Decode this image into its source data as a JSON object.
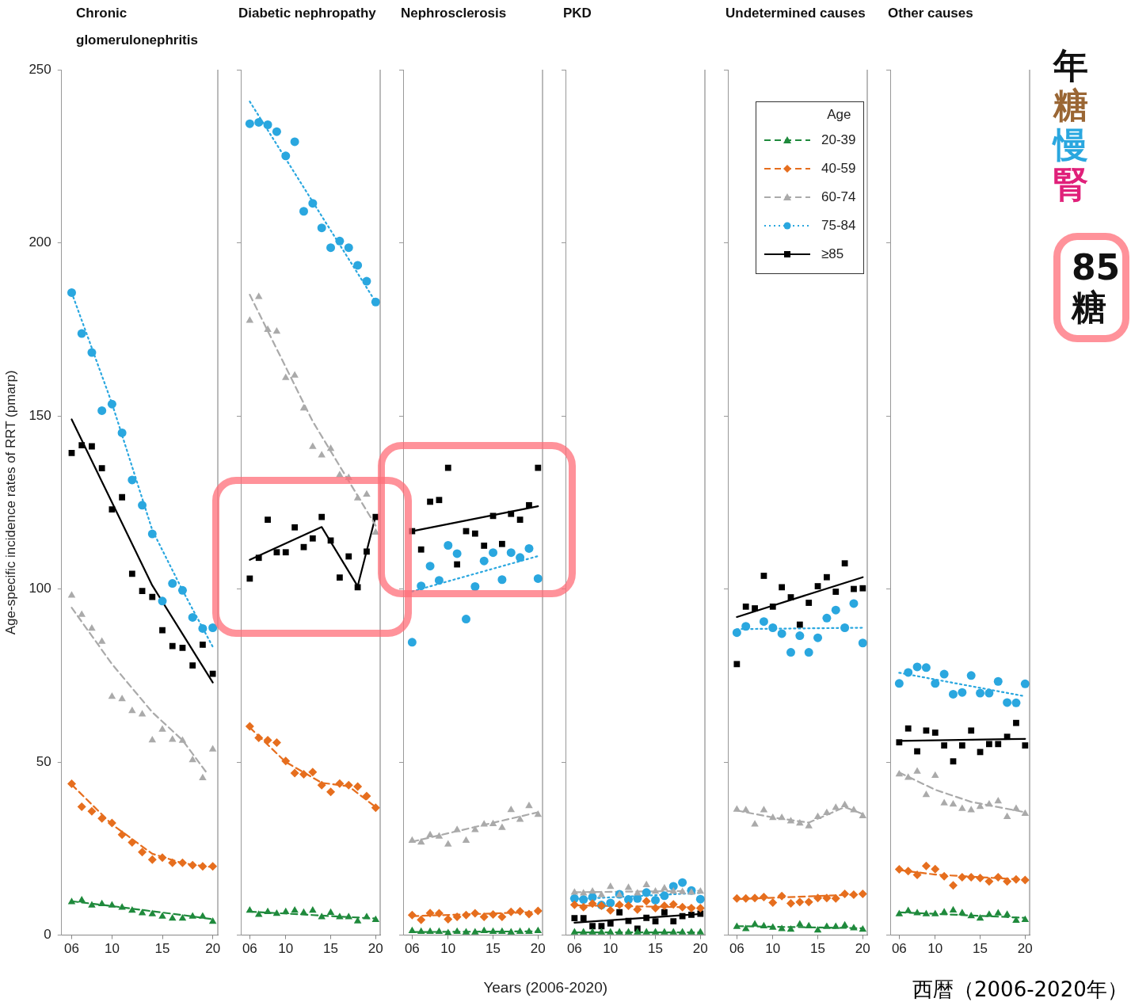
{
  "chart_data": [
    {
      "type": "scatter",
      "title": "Chronic glomerulonephritis",
      "ylabel": "Age-specific incidence rates of RRT (pmarp)",
      "x": [
        2006,
        2007,
        2008,
        2009,
        2010,
        2011,
        2012,
        2013,
        2014,
        2015,
        2016,
        2017,
        2018,
        2019,
        2020
      ],
      "xlim": [
        2005,
        2020.5
      ],
      "xticks": [
        {
          "value": 2006,
          "label": "06"
        },
        {
          "value": 2010,
          "label": "10"
        },
        {
          "value": 2015,
          "label": "15"
        },
        {
          "value": 2020,
          "label": "20"
        }
      ],
      "ylim": [
        0,
        250
      ],
      "yticks": [
        0,
        50,
        100,
        150,
        200,
        250
      ],
      "grid": false,
      "series": [
        {
          "type": "scatter",
          "color": "#1f8a3c",
          "marker": "triangle",
          "values": [
            9.6,
            10.1,
            8.6,
            9.0,
            8.6,
            8.0,
            7.1,
            6.4,
            6.1,
            5.4,
            4.8,
            4.8,
            5.4,
            5.4,
            3.9
          ]
        },
        {
          "type": "scatter",
          "color": "#e66e1e",
          "marker": "diamond",
          "values": [
            43.7,
            37.1,
            35.8,
            33.7,
            32.4,
            29.0,
            26.8,
            24.0,
            21.8,
            22.4,
            20.9,
            20.9,
            20.2,
            19.9,
            19.9
          ]
        },
        {
          "type": "scatter",
          "color": "#aaaaaa",
          "marker": "triangle",
          "values": [
            98.1,
            92.6,
            88.6,
            84.8,
            68.9,
            68.2,
            64.8,
            63.8,
            56.3,
            59.4,
            56.5,
            56.2,
            50.6,
            45.4,
            53.7
          ]
        },
        {
          "type": "scatter",
          "color": "#2aa7df",
          "marker": "circle",
          "values": [
            185.6,
            173.8,
            168.3,
            151.5,
            153.4,
            145.1,
            131.5,
            124.2,
            115.9,
            96.5,
            101.6,
            99.6,
            91.8,
            88.6,
            88.8
          ]
        },
        {
          "type": "scatter",
          "color": "#000000",
          "marker": "square",
          "values": [
            139.3,
            141.5,
            141.2,
            134.9,
            123.0,
            126.5,
            104.4,
            99.4,
            97.7,
            88.1,
            83.5,
            83.0,
            77.9,
            83.9,
            75.5
          ]
        },
        {
          "type": "line",
          "color": "#1f8a3c",
          "line_style": "dashed",
          "marker": "none",
          "x": [
            2006,
            2010,
            2014,
            2017,
            2020
          ],
          "values": [
            9.8,
            8.4,
            6.9,
            5.8,
            4.6
          ]
        },
        {
          "type": "line",
          "color": "#e66e1e",
          "line_style": "dashed",
          "marker": "none",
          "x": [
            2006,
            2010,
            2014,
            2017,
            2020
          ],
          "values": [
            43.5,
            32,
            23.5,
            20.8,
            19.6
          ]
        },
        {
          "type": "line",
          "color": "#aaaaaa",
          "line_style": "dashed",
          "marker": "none",
          "x": [
            2006,
            2010,
            2014,
            2017,
            2019.5
          ],
          "values": [
            94.6,
            78.3,
            64.4,
            56.3,
            46.5
          ]
        },
        {
          "type": "line",
          "color": "#2aa7df",
          "line_style": "dotted",
          "marker": "none",
          "x": [
            2006,
            2010,
            2014,
            2017,
            2020
          ],
          "values": [
            185.6,
            153.6,
            117,
            99.6,
            83.3
          ]
        },
        {
          "type": "line",
          "color": "#000000",
          "line_style": "solid",
          "marker": "none",
          "x": [
            2006,
            2010,
            2014,
            2017,
            2020
          ],
          "values": [
            149,
            125,
            101,
            87,
            73
          ]
        }
      ]
    },
    {
      "type": "scatter",
      "title": "Diabetic nephropathy",
      "x": [
        2006,
        2007,
        2008,
        2009,
        2010,
        2011,
        2012,
        2013,
        2014,
        2015,
        2016,
        2017,
        2018,
        2019,
        2020
      ],
      "xlim": [
        2005,
        2020.5
      ],
      "xticks": [
        {
          "value": 2006,
          "label": "06"
        },
        {
          "value": 2010,
          "label": "10"
        },
        {
          "value": 2015,
          "label": "15"
        },
        {
          "value": 2020,
          "label": "20"
        }
      ],
      "ylim": [
        0,
        250
      ],
      "yticks": [
        0,
        50,
        100,
        150,
        200,
        250
      ],
      "tick_labels": "x",
      "grid": false,
      "series": [
        {
          "type": "scatter",
          "color": "#1f8a3c",
          "marker": "triangle",
          "values": [
            7.1,
            5.9,
            6.7,
            6.2,
            6.7,
            7.1,
            6.5,
            7.1,
            5.2,
            6.5,
            5.2,
            5.2,
            4.0,
            5.2,
            4.4
          ]
        },
        {
          "type": "scatter",
          "color": "#e66e1e",
          "marker": "diamond",
          "values": [
            60.3,
            57.0,
            56.3,
            55.6,
            50.3,
            46.8,
            46.5,
            47.1,
            43.3,
            41.4,
            43.8,
            43.3,
            42.9,
            40.2,
            36.8
          ]
        },
        {
          "type": "scatter",
          "color": "#aaaaaa",
          "marker": "triangle",
          "values": [
            177.5,
            184.4,
            174.9,
            174.4,
            161.0,
            161.7,
            152.2,
            141.1,
            138.6,
            140.5,
            132.9,
            132.1,
            126.2,
            127.3,
            116.3
          ]
        },
        {
          "type": "scatter",
          "color": "#2aa7df",
          "marker": "circle",
          "values": [
            234.4,
            234.8,
            234.1,
            232.1,
            225.1,
            229.2,
            209.1,
            211.4,
            204.3,
            198.6,
            200.5,
            198.6,
            193.5,
            188.9,
            182.9
          ]
        },
        {
          "type": "scatter",
          "color": "#000000",
          "marker": "square",
          "values": [
            103.0,
            109.0,
            120.0,
            110.6,
            110.6,
            117.8,
            112.1,
            114.6,
            120.8,
            114.0,
            103.3,
            109.4,
            100.5,
            110.8,
            120.8
          ]
        },
        {
          "type": "line",
          "color": "#1f8a3c",
          "line_style": "dashed",
          "marker": "none",
          "x": [
            2006,
            2013,
            2020
          ],
          "values": [
            6.8,
            5.8,
            4.8
          ]
        },
        {
          "type": "line",
          "color": "#e66e1e",
          "line_style": "dashed",
          "marker": "none",
          "x": [
            2006,
            2010,
            2014,
            2017,
            2020
          ],
          "values": [
            60,
            50,
            44,
            43,
            37
          ]
        },
        {
          "type": "line",
          "color": "#aaaaaa",
          "line_style": "dashed",
          "marker": "none",
          "x": [
            2006,
            2013,
            2020
          ],
          "values": [
            185,
            148.4,
            118.3
          ]
        },
        {
          "type": "line",
          "color": "#2aa7df",
          "line_style": "dotted",
          "marker": "none",
          "x": [
            2006,
            2020
          ],
          "values": [
            240.8,
            182.9
          ]
        },
        {
          "type": "line",
          "color": "#000000",
          "line_style": "solid",
          "marker": "none",
          "x": [
            2006,
            2014,
            2018,
            2020
          ],
          "values": [
            108.4,
            117.9,
            100.8,
            121.1
          ]
        }
      ]
    },
    {
      "type": "scatter",
      "title": "Nephrosclerosis",
      "xlabel": "Years (2006-2020)",
      "x": [
        2006,
        2007,
        2008,
        2009,
        2010,
        2011,
        2012,
        2013,
        2014,
        2015,
        2016,
        2017,
        2018,
        2019,
        2020
      ],
      "xlim": [
        2005,
        2020.5
      ],
      "xticks": [
        {
          "value": 2006,
          "label": "06"
        },
        {
          "value": 2010,
          "label": "10"
        },
        {
          "value": 2015,
          "label": "15"
        },
        {
          "value": 2020,
          "label": "20"
        }
      ],
      "ylim": [
        0,
        250
      ],
      "yticks": [
        0,
        50,
        100,
        150,
        200,
        250
      ],
      "tick_labels": "x",
      "grid": false,
      "series": [
        {
          "type": "scatter",
          "color": "#1f8a3c",
          "marker": "triangle",
          "values": [
            1.2,
            1.0,
            1.0,
            1.0,
            0.6,
            1.0,
            0.8,
            0.8,
            1.2,
            1.0,
            1.0,
            0.8,
            1.0,
            1.0,
            1.2
          ]
        },
        {
          "type": "scatter",
          "color": "#e66e1e",
          "marker": "diamond",
          "values": [
            5.8,
            4.4,
            6.4,
            6.3,
            4.6,
            5.3,
            5.8,
            6.3,
            5.3,
            6.0,
            5.3,
            6.7,
            6.9,
            6.1,
            7.0
          ]
        },
        {
          "type": "scatter",
          "color": "#aaaaaa",
          "marker": "triangle",
          "values": [
            27.3,
            26.8,
            28.9,
            28.5,
            26.2,
            30.4,
            27.3,
            30.4,
            32.0,
            32.1,
            31.0,
            36.2,
            33.4,
            37.3,
            34.8
          ]
        },
        {
          "type": "scatter",
          "color": "#2aa7df",
          "marker": "circle",
          "values": [
            84.6,
            100.9,
            106.6,
            102.5,
            112.6,
            110.2,
            91.3,
            100.7,
            108.1,
            110.5,
            102.7,
            110.5,
            109.1,
            111.7,
            103.0
          ]
        },
        {
          "type": "scatter",
          "color": "#000000",
          "marker": "square",
          "values": [
            116.7,
            111.4,
            125.2,
            125.7,
            135.0,
            107.1,
            116.7,
            116.0,
            112.5,
            121.1,
            113.0,
            121.7,
            120.0,
            124.2,
            135.0
          ]
        },
        {
          "type": "line",
          "color": "#1f8a3c",
          "line_style": "dashed",
          "marker": "none",
          "x": [
            2006,
            2020
          ],
          "values": [
            0.9,
            1.1
          ]
        },
        {
          "type": "line",
          "color": "#e66e1e",
          "line_style": "dashed",
          "marker": "none",
          "x": [
            2006,
            2020
          ],
          "values": [
            5.5,
            6.7
          ]
        },
        {
          "type": "line",
          "color": "#aaaaaa",
          "line_style": "dashed",
          "marker": "none",
          "x": [
            2006,
            2020
          ],
          "values": [
            27,
            35.5
          ]
        },
        {
          "type": "line",
          "color": "#2aa7df",
          "line_style": "dotted",
          "marker": "none",
          "x": [
            2006,
            2020
          ],
          "values": [
            99.3,
            109.5
          ]
        },
        {
          "type": "line",
          "color": "#000000",
          "line_style": "solid",
          "marker": "none",
          "x": [
            2006,
            2020
          ],
          "values": [
            116.7,
            123.9
          ]
        }
      ]
    },
    {
      "type": "scatter",
      "title": "PKD",
      "x": [
        2006,
        2007,
        2008,
        2009,
        2010,
        2011,
        2012,
        2013,
        2014,
        2015,
        2016,
        2017,
        2018,
        2019,
        2020
      ],
      "xlim": [
        2005,
        2020.5
      ],
      "xticks": [
        {
          "value": 2006,
          "label": "06"
        },
        {
          "value": 2010,
          "label": "10"
        },
        {
          "value": 2015,
          "label": "15"
        },
        {
          "value": 2020,
          "label": "20"
        }
      ],
      "ylim": [
        0,
        250
      ],
      "yticks": [
        0,
        50,
        100,
        150,
        200,
        250
      ],
      "tick_labels": "x",
      "grid": false,
      "series": [
        {
          "type": "scatter",
          "color": "#1f8a3c",
          "marker": "triangle",
          "values": [
            0.8,
            0.8,
            0.8,
            0.8,
            0.8,
            0.8,
            0.8,
            0.8,
            0.8,
            0.8,
            0.8,
            0.8,
            0.8,
            0.8,
            0.8
          ]
        },
        {
          "type": "scatter",
          "color": "#e66e1e",
          "marker": "diamond",
          "values": [
            8.8,
            8.1,
            9.1,
            8.5,
            7.2,
            8.8,
            8.5,
            7.4,
            9.8,
            7.8,
            8.5,
            8.9,
            8.1,
            7.8,
            7.8
          ]
        },
        {
          "type": "scatter",
          "color": "#aaaaaa",
          "marker": "triangle",
          "values": [
            12.3,
            12.1,
            12.6,
            11.6,
            14.0,
            11.6,
            13.7,
            12.1,
            14.5,
            12.6,
            13.5,
            12.6,
            12.5,
            12.3,
            12.6
          ]
        },
        {
          "type": "scatter",
          "color": "#2aa7df",
          "marker": "circle",
          "values": [
            10.6,
            10.3,
            11.0,
            8.7,
            9.3,
            11.8,
            10.3,
            10.6,
            12.3,
            10.1,
            11.4,
            14.1,
            15.2,
            12.9,
            10.4
          ]
        },
        {
          "type": "scatter",
          "color": "#000000",
          "marker": "square",
          "values": [
            4.9,
            4.9,
            2.6,
            2.6,
            3.4,
            6.6,
            4.1,
            1.9,
            5.0,
            4.0,
            6.6,
            4.0,
            5.5,
            5.9,
            6.2
          ]
        },
        {
          "type": "line",
          "color": "#1f8a3c",
          "line_style": "dashed",
          "marker": "none",
          "x": [
            2006,
            2020
          ],
          "values": [
            0.8,
            0.8
          ]
        },
        {
          "type": "line",
          "color": "#e66e1e",
          "line_style": "dashed",
          "marker": "none",
          "x": [
            2006,
            2020
          ],
          "values": [
            8.6,
            8.0
          ]
        },
        {
          "type": "line",
          "color": "#aaaaaa",
          "line_style": "dashed",
          "marker": "none",
          "x": [
            2006,
            2020
          ],
          "values": [
            12.4,
            12.8
          ]
        },
        {
          "type": "line",
          "color": "#2aa7df",
          "line_style": "dotted",
          "marker": "none",
          "x": [
            2006,
            2020
          ],
          "values": [
            10.4,
            12.2
          ]
        },
        {
          "type": "line",
          "color": "#000000",
          "line_style": "solid",
          "marker": "none",
          "x": [
            2006,
            2020
          ],
          "values": [
            3.6,
            6.1
          ]
        }
      ]
    },
    {
      "type": "scatter",
      "title": "Undetermined causes",
      "legend": "top right",
      "legend_title": "Age",
      "x": [
        2006,
        2007,
        2008,
        2009,
        2010,
        2011,
        2012,
        2013,
        2014,
        2015,
        2016,
        2017,
        2018,
        2019,
        2020
      ],
      "xlim": [
        2005,
        2020.5
      ],
      "xticks": [
        {
          "value": 2006,
          "label": "06"
        },
        {
          "value": 2010,
          "label": "10"
        },
        {
          "value": 2015,
          "label": "15"
        },
        {
          "value": 2020,
          "label": "20"
        }
      ],
      "ylim": [
        0,
        250
      ],
      "yticks": [
        0,
        50,
        100,
        150,
        200,
        250
      ],
      "tick_labels": "x",
      "grid": false,
      "series": [
        {
          "type": "scatter",
          "name": "20-39",
          "color": "#1f8a3c",
          "marker": "triangle",
          "values": [
            2.4,
            1.8,
            3.1,
            2.6,
            2.2,
            1.8,
            1.6,
            3.1,
            2.6,
            1.4,
            2.4,
            2.4,
            2.8,
            2.0,
            1.6
          ]
        },
        {
          "type": "scatter",
          "name": "40-59",
          "color": "#e66e1e",
          "marker": "diamond",
          "values": [
            10.6,
            10.6,
            10.7,
            11.0,
            9.4,
            11.3,
            9.2,
            9.6,
            9.6,
            10.7,
            10.7,
            10.6,
            11.9,
            11.7,
            11.9
          ]
        },
        {
          "type": "scatter",
          "name": "60-74",
          "color": "#aaaaaa",
          "marker": "triangle",
          "values": [
            36.3,
            36.1,
            32.0,
            36.1,
            33.9,
            33.9,
            32.9,
            32.3,
            31.5,
            34.2,
            35.3,
            36.8,
            37.6,
            36.1,
            34.4
          ]
        },
        {
          "type": "scatter",
          "name": "75-84",
          "color": "#2aa7df",
          "marker": "circle",
          "values": [
            87.4,
            89.2,
            null,
            90.6,
            88.8,
            87.1,
            81.7,
            86.5,
            81.7,
            85.9,
            91.6,
            93.9,
            88.8,
            95.8,
            84.4
          ]
        },
        {
          "type": "scatter",
          "name": "≥85",
          "color": "#000000",
          "marker": "square",
          "values": [
            78.3,
            94.9,
            94.4,
            103.8,
            94.9,
            100.5,
            97.6,
            89.7,
            96.0,
            100.8,
            103.4,
            99.2,
            107.4,
            100.0,
            100.2
          ]
        },
        {
          "type": "line",
          "color": "#1f8a3c",
          "line_style": "dashed",
          "marker": "none",
          "x": [
            2006,
            2020
          ],
          "values": [
            2.6,
            2.0
          ]
        },
        {
          "type": "line",
          "color": "#e66e1e",
          "line_style": "dashed",
          "marker": "none",
          "x": [
            2006,
            2020
          ],
          "values": [
            10.4,
            11.8
          ]
        },
        {
          "type": "line",
          "color": "#aaaaaa",
          "line_style": "dashed",
          "marker": "none",
          "x": [
            2006,
            2010,
            2014,
            2018,
            2020
          ],
          "values": [
            36,
            34,
            32.5,
            37,
            35
          ]
        },
        {
          "type": "line",
          "color": "#2aa7df",
          "line_style": "dotted",
          "marker": "none",
          "x": [
            2006,
            2020
          ],
          "values": [
            88.4,
            88.8
          ]
        },
        {
          "type": "line",
          "color": "#000000",
          "line_style": "solid",
          "marker": "none",
          "x": [
            2006,
            2020
          ],
          "values": [
            91.9,
            103.4
          ]
        }
      ]
    },
    {
      "type": "scatter",
      "title": "Other causes",
      "annotations": [
        "年",
        "糖",
        "慢",
        "腎",
        "85",
        "糖",
        "西暦（2006-2020年）"
      ],
      "x": [
        2006,
        2007,
        2008,
        2009,
        2010,
        2011,
        2012,
        2013,
        2014,
        2015,
        2016,
        2017,
        2018,
        2019,
        2020
      ],
      "xlim": [
        2005,
        2020.5
      ],
      "xticks": [
        {
          "value": 2006,
          "label": "06"
        },
        {
          "value": 2010,
          "label": "10"
        },
        {
          "value": 2015,
          "label": "15"
        },
        {
          "value": 2020,
          "label": "20"
        }
      ],
      "ylim": [
        0,
        250
      ],
      "yticks": [
        0,
        50,
        100,
        150,
        200,
        250
      ],
      "tick_labels": "x",
      "grid": false,
      "series": [
        {
          "type": "scatter",
          "color": "#1f8a3c",
          "marker": "triangle",
          "values": [
            6.1,
            7.0,
            6.4,
            6.1,
            6.1,
            6.6,
            7.2,
            6.4,
            5.5,
            4.8,
            5.9,
            6.3,
            5.9,
            4.2,
            4.4
          ]
        },
        {
          "type": "scatter",
          "color": "#e66e1e",
          "marker": "diamond",
          "values": [
            19.0,
            18.5,
            17.4,
            20.0,
            19.1,
            17.0,
            14.4,
            16.7,
            16.7,
            16.5,
            15.5,
            16.7,
            15.5,
            16.1,
            15.9
          ]
        },
        {
          "type": "scatter",
          "color": "#aaaaaa",
          "marker": "triangle",
          "values": [
            46.5,
            45.5,
            47.3,
            40.5,
            46.1,
            38.1,
            37.8,
            36.5,
            36.1,
            37.1,
            37.8,
            38.7,
            34.2,
            36.5,
            35.1
          ]
        },
        {
          "type": "scatter",
          "color": "#2aa7df",
          "marker": "circle",
          "values": [
            72.7,
            75.9,
            77.5,
            77.3,
            72.7,
            75.4,
            69.6,
            70.1,
            75.0,
            69.9,
            69.9,
            73.3,
            67.2,
            67.1,
            72.6
          ]
        },
        {
          "type": "scatter",
          "color": "#000000",
          "marker": "square",
          "values": [
            55.7,
            59.7,
            53.1,
            59.1,
            58.5,
            54.8,
            50.2,
            54.8,
            59.1,
            52.9,
            55.2,
            55.2,
            57.3,
            61.3,
            54.8
          ]
        },
        {
          "type": "line",
          "color": "#1f8a3c",
          "line_style": "dashed",
          "marker": "none",
          "x": [
            2006,
            2020
          ],
          "values": [
            6.6,
            5.0
          ]
        },
        {
          "type": "line",
          "color": "#e66e1e",
          "line_style": "dashed",
          "marker": "none",
          "x": [
            2006,
            2010,
            2020
          ],
          "values": [
            18.8,
            17.5,
            16
          ]
        },
        {
          "type": "line",
          "color": "#aaaaaa",
          "line_style": "dashed",
          "marker": "none",
          "x": [
            2006,
            2010,
            2014,
            2017,
            2020
          ],
          "values": [
            47,
            42,
            38.5,
            37,
            35.5
          ]
        },
        {
          "type": "line",
          "color": "#2aa7df",
          "line_style": "dotted",
          "marker": "none",
          "x": [
            2006,
            2020
          ],
          "values": [
            75.8,
            69.0
          ]
        },
        {
          "type": "line",
          "color": "#000000",
          "line_style": "solid",
          "marker": "none",
          "x": [
            2006,
            2020
          ],
          "values": [
            56.1,
            56.7
          ]
        }
      ]
    }
  ]
}
